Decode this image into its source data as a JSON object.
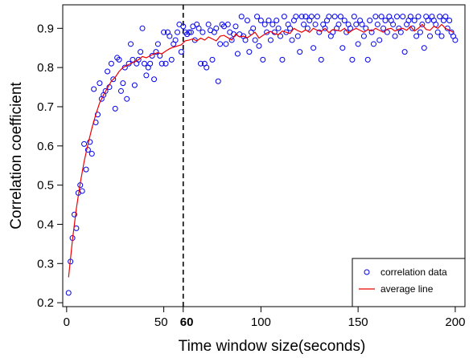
{
  "chart_data": {
    "type": "scatter",
    "xlabel": "Time window size(seconds)",
    "ylabel": "Correlation coefficient",
    "xlim": [
      -2,
      205
    ],
    "ylim": [
      0.19,
      0.96
    ],
    "xticks": [
      0,
      50,
      100,
      150,
      200
    ],
    "xtick_labels": [
      "0",
      "50",
      "100",
      "150",
      "200"
    ],
    "yticks": [
      0.2,
      0.3,
      0.4,
      0.5,
      0.6,
      0.7,
      0.8,
      0.9
    ],
    "ytick_labels": [
      "0.2",
      "0.3",
      "0.4",
      "0.5",
      "0.6",
      "0.7",
      "0.8",
      "0.9"
    ],
    "grid": false,
    "legend_position": "bottom-right",
    "colors": {
      "points": "#0000ee",
      "line": "#ee0000",
      "axis": "#000000",
      "vline": "#000000"
    },
    "vertical_line": {
      "x": 60,
      "label": "60",
      "style": "dashed"
    },
    "series": [
      {
        "name": "correlation data",
        "kind": "scatter",
        "x": [
          1,
          2,
          3,
          4,
          5,
          6,
          7,
          8,
          9,
          10,
          11,
          12,
          13,
          14,
          15,
          16,
          17,
          18,
          19,
          20,
          21,
          22,
          23,
          24,
          25,
          26,
          27,
          28,
          29,
          30,
          31,
          32,
          33,
          34,
          35,
          36,
          37,
          38,
          39,
          40,
          41,
          42,
          43,
          44,
          45,
          46,
          47,
          48,
          49,
          50,
          51,
          52,
          53,
          54,
          55,
          56,
          57,
          58,
          59,
          60,
          61,
          62,
          63,
          64,
          65,
          66,
          67,
          68,
          69,
          70,
          71,
          72,
          73,
          74,
          75,
          76,
          77,
          78,
          79,
          80,
          81,
          82,
          83,
          84,
          85,
          86,
          87,
          88,
          89,
          90,
          91,
          92,
          93,
          94,
          95,
          96,
          97,
          98,
          99,
          100,
          101,
          102,
          103,
          104,
          105,
          106,
          107,
          108,
          109,
          110,
          111,
          112,
          113,
          114,
          115,
          116,
          117,
          118,
          119,
          120,
          121,
          122,
          123,
          124,
          125,
          126,
          127,
          128,
          129,
          130,
          131,
          132,
          133,
          134,
          135,
          136,
          137,
          138,
          139,
          140,
          141,
          142,
          143,
          144,
          145,
          146,
          147,
          148,
          149,
          150,
          151,
          152,
          153,
          154,
          155,
          156,
          157,
          158,
          159,
          160,
          161,
          162,
          163,
          164,
          165,
          166,
          167,
          168,
          169,
          170,
          171,
          172,
          173,
          174,
          175,
          176,
          177,
          178,
          179,
          180,
          181,
          182,
          183,
          184,
          185,
          186,
          187,
          188,
          189,
          190,
          191,
          192,
          193,
          194,
          195,
          196,
          197,
          198,
          199,
          200
        ],
        "y": [
          0.225,
          0.305,
          0.365,
          0.425,
          0.39,
          0.48,
          0.5,
          0.485,
          0.605,
          0.54,
          0.59,
          0.61,
          0.58,
          0.745,
          0.66,
          0.68,
          0.76,
          0.72,
          0.73,
          0.74,
          0.79,
          0.75,
          0.81,
          0.77,
          0.695,
          0.825,
          0.82,
          0.74,
          0.76,
          0.8,
          0.72,
          0.81,
          0.86,
          0.82,
          0.755,
          0.81,
          0.82,
          0.84,
          0.9,
          0.81,
          0.78,
          0.8,
          0.81,
          0.83,
          0.77,
          0.84,
          0.86,
          0.83,
          0.81,
          0.89,
          0.81,
          0.89,
          0.88,
          0.82,
          0.86,
          0.87,
          0.89,
          0.91,
          0.84,
          0.905,
          0.89,
          0.885,
          0.89,
          0.89,
          0.905,
          0.87,
          0.91,
          0.9,
          0.81,
          0.89,
          0.81,
          0.8,
          0.91,
          0.895,
          0.82,
          0.89,
          0.9,
          0.765,
          0.86,
          0.91,
          0.905,
          0.86,
          0.91,
          0.89,
          0.87,
          0.885,
          0.905,
          0.835,
          0.885,
          0.93,
          0.88,
          0.87,
          0.92,
          0.84,
          0.89,
          0.9,
          0.87,
          0.93,
          0.855,
          0.92,
          0.82,
          0.91,
          0.89,
          0.92,
          0.87,
          0.91,
          0.89,
          0.92,
          0.9,
          0.88,
          0.82,
          0.93,
          0.89,
          0.91,
          0.9,
          0.87,
          0.92,
          0.93,
          0.88,
          0.84,
          0.93,
          0.91,
          0.93,
          0.9,
          0.92,
          0.93,
          0.85,
          0.91,
          0.93,
          0.89,
          0.82,
          0.91,
          0.9,
          0.92,
          0.93,
          0.88,
          0.89,
          0.93,
          0.9,
          0.91,
          0.93,
          0.85,
          0.92,
          0.89,
          0.91,
          0.9,
          0.82,
          0.93,
          0.91,
          0.86,
          0.92,
          0.91,
          0.88,
          0.9,
          0.82,
          0.92,
          0.89,
          0.86,
          0.93,
          0.91,
          0.87,
          0.93,
          0.9,
          0.92,
          0.89,
          0.93,
          0.92,
          0.91,
          0.88,
          0.93,
          0.9,
          0.89,
          0.93,
          0.84,
          0.91,
          0.92,
          0.93,
          0.9,
          0.92,
          0.88,
          0.93,
          0.89,
          0.91,
          0.85,
          0.93,
          0.92,
          0.88,
          0.93,
          0.92,
          0.91,
          0.89,
          0.93,
          0.88,
          0.92,
          0.93,
          0.9,
          0.92,
          0.89,
          0.88,
          0.87
        ]
      },
      {
        "name": "average line",
        "kind": "line",
        "x": [
          1,
          3,
          5,
          7,
          9,
          11,
          13,
          15,
          17,
          19,
          21,
          23,
          25,
          27,
          29,
          31,
          33,
          35,
          37,
          39,
          41,
          43,
          45,
          47,
          49,
          51,
          53,
          55,
          57,
          59,
          61,
          63,
          65,
          67,
          69,
          71,
          73,
          75,
          77,
          79,
          81,
          83,
          85,
          87,
          89,
          91,
          93,
          95,
          97,
          99,
          101,
          103,
          105,
          107,
          109,
          111,
          113,
          115,
          117,
          119,
          121,
          123,
          125,
          127,
          129,
          131,
          133,
          135,
          137,
          139,
          141,
          143,
          145,
          147,
          149,
          151,
          153,
          155,
          157,
          159,
          161,
          163,
          165,
          167,
          169,
          171,
          173,
          175,
          177,
          179,
          181,
          183,
          185,
          187,
          189,
          191,
          193,
          195,
          197,
          199
        ],
        "y": [
          0.265,
          0.36,
          0.44,
          0.505,
          0.56,
          0.605,
          0.645,
          0.68,
          0.71,
          0.73,
          0.748,
          0.765,
          0.775,
          0.79,
          0.8,
          0.805,
          0.81,
          0.815,
          0.82,
          0.828,
          0.825,
          0.83,
          0.835,
          0.838,
          0.835,
          0.842,
          0.848,
          0.852,
          0.855,
          0.858,
          0.868,
          0.87,
          0.873,
          0.868,
          0.875,
          0.87,
          0.878,
          0.873,
          0.868,
          0.88,
          0.882,
          0.876,
          0.87,
          0.885,
          0.878,
          0.88,
          0.876,
          0.883,
          0.89,
          0.875,
          0.882,
          0.888,
          0.892,
          0.886,
          0.884,
          0.893,
          0.89,
          0.887,
          0.9,
          0.894,
          0.89,
          0.896,
          0.89,
          0.9,
          0.895,
          0.892,
          0.9,
          0.889,
          0.897,
          0.895,
          0.893,
          0.9,
          0.888,
          0.895,
          0.9,
          0.895,
          0.89,
          0.897,
          0.893,
          0.9,
          0.895,
          0.89,
          0.898,
          0.9,
          0.893,
          0.898,
          0.9,
          0.895,
          0.905,
          0.893,
          0.9,
          0.91,
          0.897,
          0.895,
          0.905,
          0.9,
          0.91,
          0.9,
          0.895,
          0.89
        ]
      }
    ]
  }
}
